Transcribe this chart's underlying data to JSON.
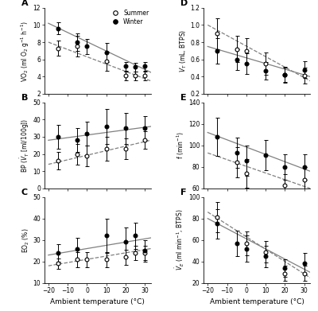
{
  "x_temps": [
    -15,
    -5,
    0,
    10,
    20,
    25,
    30
  ],
  "panel_A": {
    "label": "A",
    "ylabel": "VO$_2$ (ml O$_2$ g$^{-1}$ h$^{-1}$)",
    "ylim": [
      2,
      12
    ],
    "yticks": [
      2,
      4,
      6,
      8,
      10,
      12
    ],
    "summer_y": [
      7.3,
      7.5,
      null,
      5.8,
      4.1,
      4.1,
      4.1
    ],
    "summer_yerr": [
      0.9,
      1.2,
      null,
      1.1,
      0.5,
      0.5,
      0.5
    ],
    "winter_y": [
      9.6,
      8.0,
      7.5,
      6.8,
      5.2,
      5.1,
      5.2
    ],
    "winter_yerr": [
      0.7,
      1.0,
      0.9,
      1.1,
      0.5,
      0.5,
      0.5
    ],
    "summer_trend_x": [
      -20,
      33
    ],
    "summer_trend_y": [
      8.0,
      3.5
    ],
    "winter_trend_x": [
      -20,
      33
    ],
    "winter_trend_y": [
      10.2,
      4.5
    ]
  },
  "panel_B": {
    "label": "B",
    "ylabel": "BP ($\\dot{V}_T$ [ml/100g])",
    "ylim": [
      0,
      50
    ],
    "yticks": [
      0,
      10,
      20,
      30,
      40,
      50
    ],
    "summer_y": [
      16,
      20,
      19,
      23,
      23,
      null,
      28
    ],
    "summer_yerr": [
      5,
      6,
      6,
      7,
      6,
      null,
      5
    ],
    "winter_y": [
      30,
      28,
      32,
      36,
      35,
      null,
      35
    ],
    "winter_yerr": [
      7,
      7,
      7,
      10,
      9,
      null,
      7
    ],
    "summer_trend_x": [
      -20,
      33
    ],
    "summer_trend_y": [
      14,
      28
    ],
    "winter_trend_x": [
      -20,
      33
    ],
    "winter_trend_y": [
      28,
      36
    ]
  },
  "panel_C": {
    "label": "C",
    "ylabel": "EO$_2$ (%)",
    "xlabel": "Ambient temperature (°C)",
    "ylim": [
      10,
      50
    ],
    "yticks": [
      10,
      20,
      30,
      40,
      50
    ],
    "summer_y": [
      19,
      21,
      21,
      21,
      22,
      24,
      24
    ],
    "summer_yerr": [
      2.5,
      3.5,
      3.5,
      3.5,
      3.5,
      3.5,
      3.5
    ],
    "winter_y": [
      24,
      26,
      null,
      32,
      29,
      32,
      25
    ],
    "winter_yerr": [
      4,
      5,
      null,
      8,
      7,
      6,
      5
    ],
    "summer_trend_x": [
      -20,
      33
    ],
    "summer_trend_y": [
      18,
      26
    ],
    "winter_trend_x": [
      -20,
      33
    ],
    "winter_trend_y": [
      23,
      31
    ]
  },
  "panel_D": {
    "label": "D",
    "ylabel": "$V_T$ (mL, BTPS)",
    "ylim": [
      0.2,
      1.2
    ],
    "yticks": [
      0.2,
      0.4,
      0.6,
      0.8,
      1.0,
      1.2
    ],
    "summer_y": [
      0.9,
      0.72,
      0.7,
      0.55,
      0.42,
      null,
      0.41
    ],
    "summer_yerr": [
      0.18,
      0.15,
      0.15,
      0.13,
      0.09,
      null,
      0.09
    ],
    "winter_y": [
      0.7,
      0.6,
      0.55,
      0.47,
      0.42,
      null,
      0.48
    ],
    "winter_yerr": [
      0.15,
      0.12,
      0.12,
      0.1,
      0.08,
      null,
      0.1
    ],
    "summer_trend_x": [
      -20,
      33
    ],
    "summer_trend_y": [
      1.0,
      0.35
    ],
    "winter_trend_x": [
      -20,
      33
    ],
    "winter_trend_y": [
      0.75,
      0.4
    ]
  },
  "panel_E": {
    "label": "E",
    "ylabel": "f (min$^{-1}$)",
    "ylim": [
      60,
      140
    ],
    "yticks": [
      60,
      80,
      100,
      120,
      140
    ],
    "summer_y": [
      null,
      84,
      74,
      null,
      63,
      null,
      68
    ],
    "summer_yerr": [
      null,
      14,
      13,
      null,
      10,
      null,
      12
    ],
    "winter_y": [
      108,
      93,
      86,
      91,
      80,
      null,
      80
    ],
    "winter_yerr": [
      18,
      14,
      14,
      14,
      12,
      null,
      12
    ],
    "summer_trend_x": [
      -20,
      33
    ],
    "summer_trend_y": [
      93,
      60
    ],
    "winter_trend_x": [
      -20,
      33
    ],
    "winter_trend_y": [
      112,
      76
    ]
  },
  "panel_F": {
    "label": "F",
    "ylabel": "$\\dot{V}_E$ (ml min$^{-1}$, BTPS)",
    "xlabel": "Ambient temperature (°C)",
    "ylim": [
      20,
      100
    ],
    "yticks": [
      20,
      40,
      60,
      80,
      100
    ],
    "summer_y": [
      81,
      null,
      57,
      49,
      29,
      null,
      29
    ],
    "summer_yerr": [
      14,
      null,
      11,
      10,
      7,
      null,
      7
    ],
    "winter_y": [
      75,
      57,
      52,
      45,
      34,
      null,
      38
    ],
    "winter_yerr": [
      14,
      12,
      12,
      10,
      8,
      null,
      10
    ],
    "summer_trend_x": [
      -20,
      33
    ],
    "summer_trend_y": [
      86,
      25
    ],
    "winter_trend_x": [
      -20,
      33
    ],
    "winter_trend_y": [
      80,
      30
    ]
  },
  "x_ticks": [
    -20,
    -10,
    0,
    10,
    20,
    30
  ],
  "xlim": [
    -22,
    33
  ],
  "bg_color": "white"
}
